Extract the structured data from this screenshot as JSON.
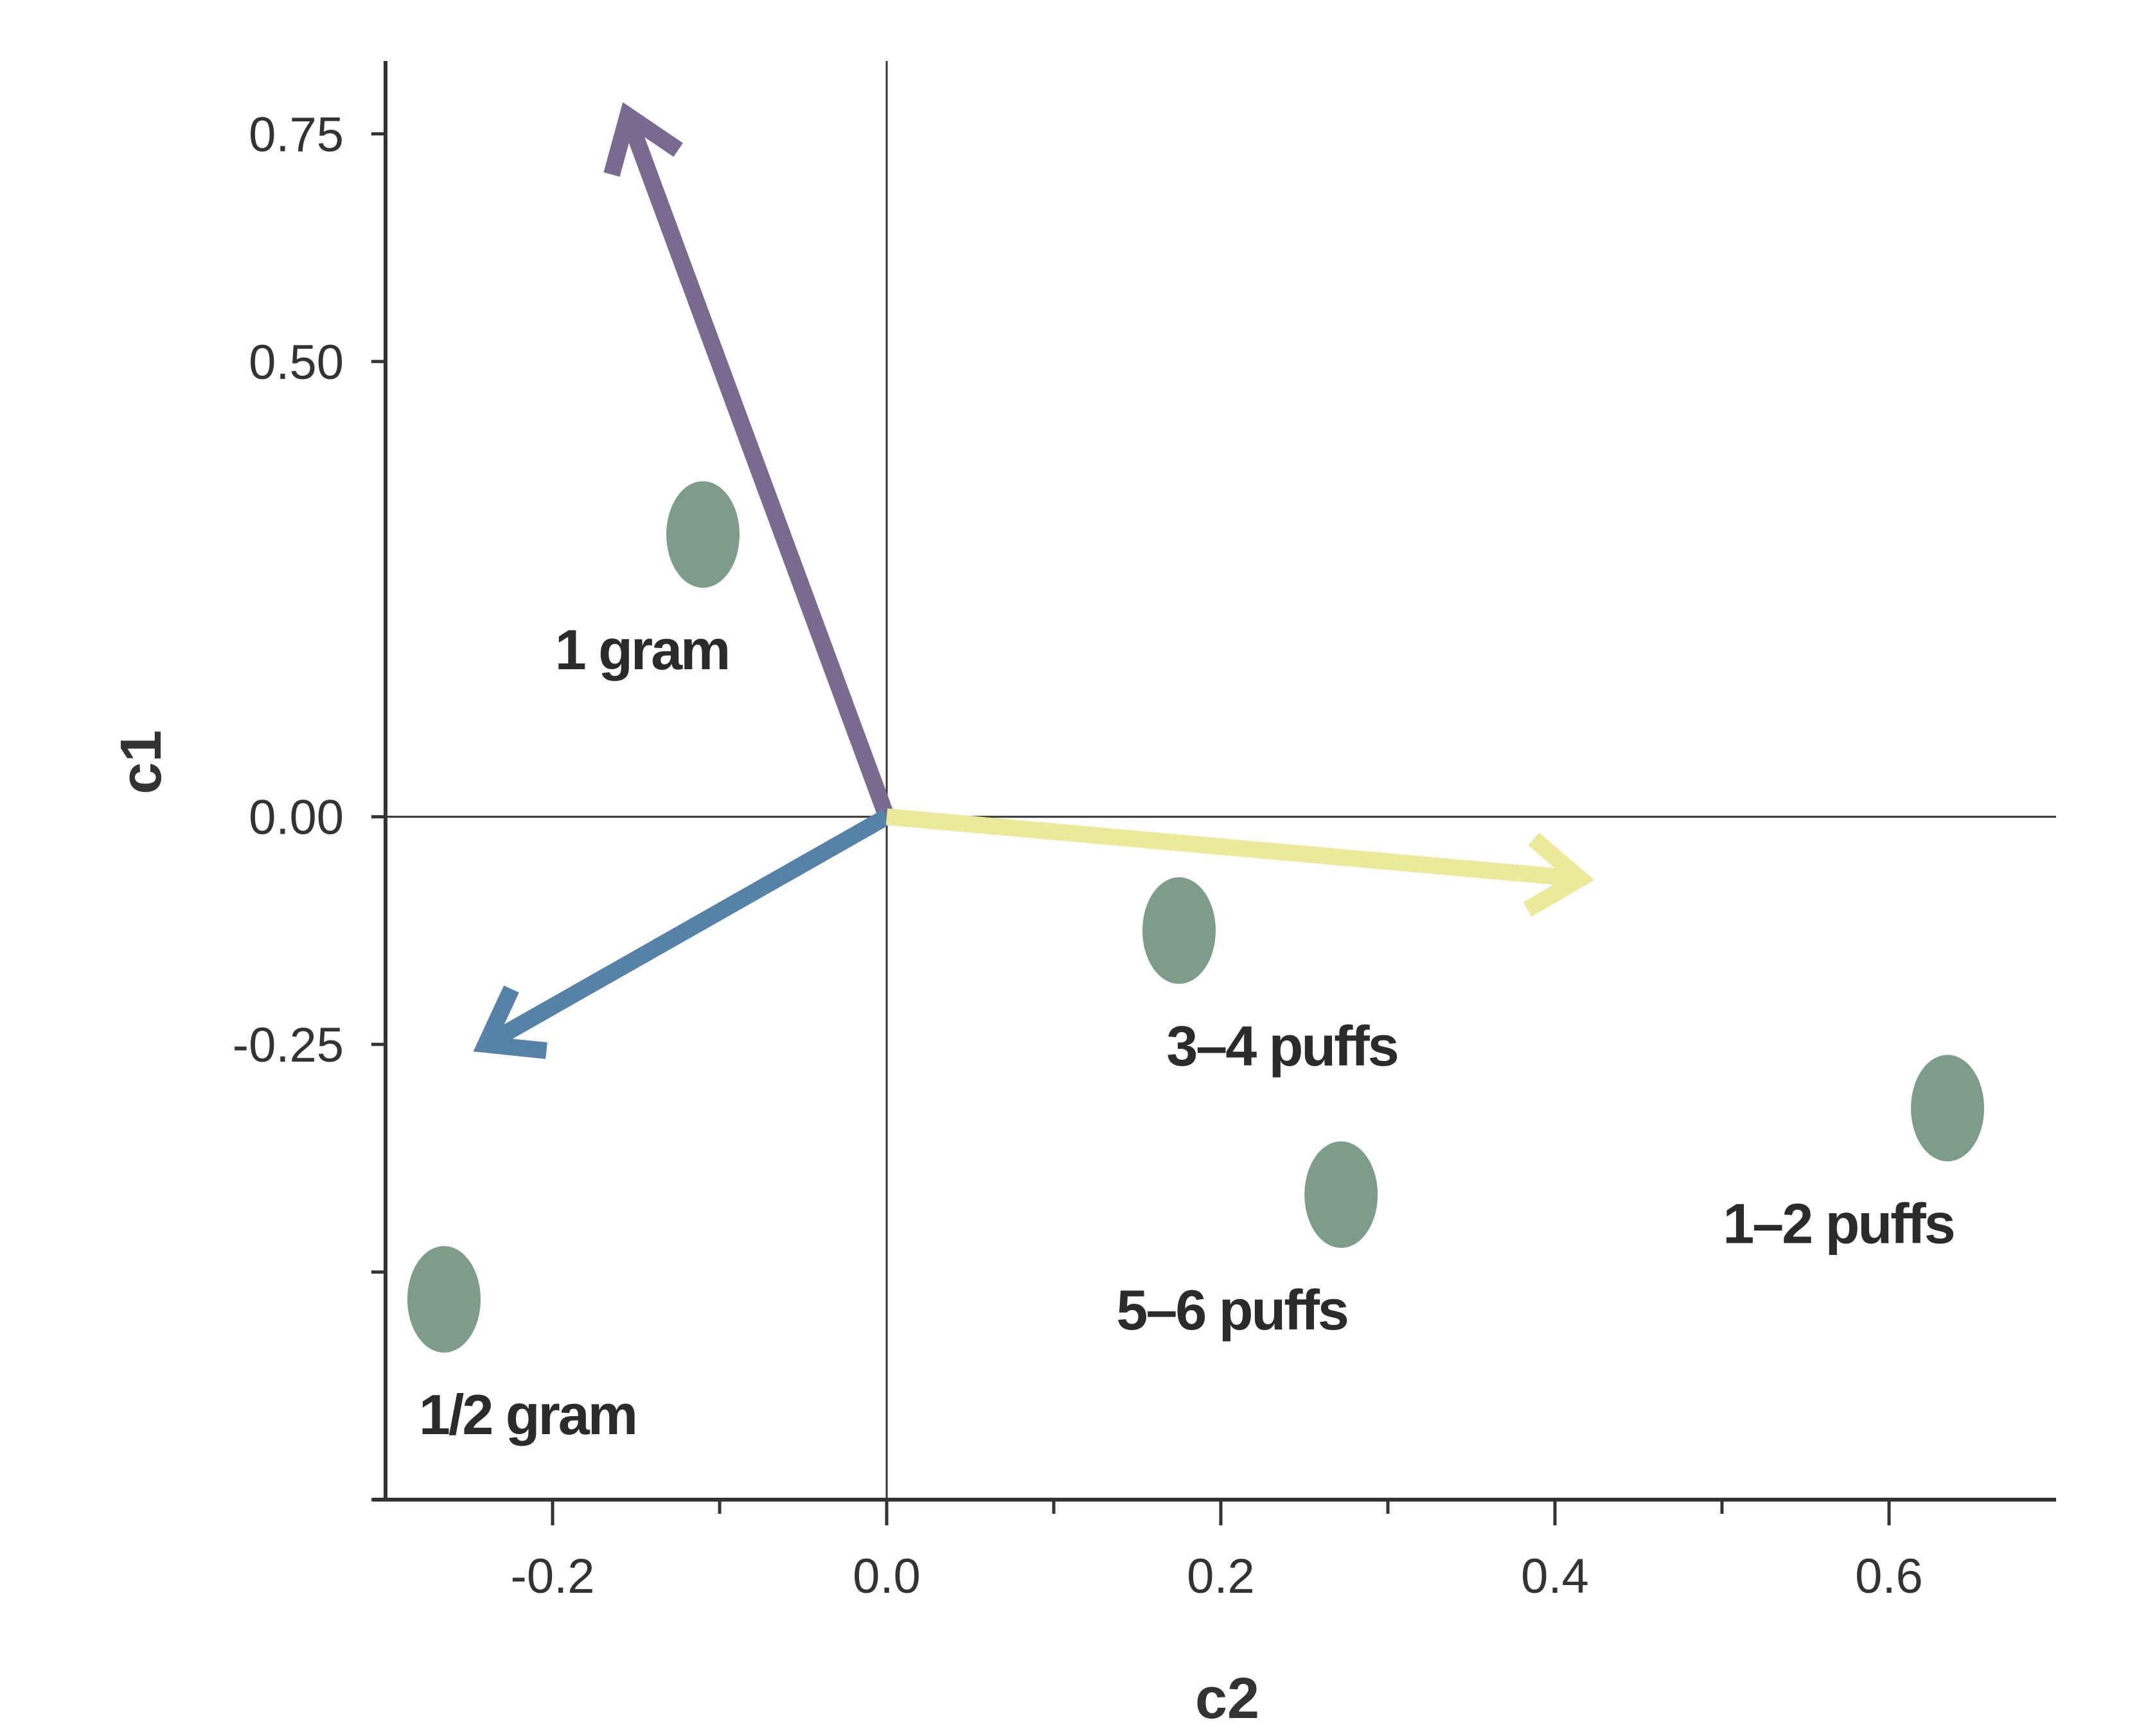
{
  "chart_data": {
    "type": "scatter",
    "title": "",
    "xlabel": "c2",
    "ylabel": "c1",
    "xlim": [
      -0.3,
      0.7
    ],
    "ylim": [
      -0.75,
      0.83
    ],
    "x_major_ticks": [
      -0.2,
      0.0,
      0.2,
      0.4,
      0.6
    ],
    "x_tick_labels": [
      "-0.2",
      "0.0",
      "0.2",
      "0.4",
      "0.6"
    ],
    "x_minor_ticks": [
      -0.1,
      0.1,
      0.3,
      0.5
    ],
    "y_ticks": [
      0.75,
      0.5,
      0.0,
      -0.25,
      -0.5,
      -0.75
    ],
    "y_tick_labels": [
      "0.75",
      "0.50",
      "0.00",
      "-0.25",
      "",
      ""
    ],
    "grid": false,
    "reference_lines": {
      "x": 0.0,
      "y": 0.0
    },
    "points": [
      {
        "label": "1 gram",
        "x": -0.11,
        "y": 0.31,
        "color": "#7d9d8a"
      },
      {
        "label": "1/2 gram",
        "x": -0.265,
        "y": -0.53,
        "color": "#7d9d8a"
      },
      {
        "label": "3–4 puffs",
        "x": 0.175,
        "y": -0.125,
        "color": "#7d9d8a"
      },
      {
        "label": "5–6 puffs",
        "x": 0.272,
        "y": -0.415,
        "color": "#7d9d8a"
      },
      {
        "label": "1–2 puffs",
        "x": 0.635,
        "y": -0.32,
        "color": "#7d9d8a"
      }
    ],
    "vectors": [
      {
        "x": -0.155,
        "y": 0.77,
        "color": "#7b6a90"
      },
      {
        "x": -0.24,
        "y": -0.25,
        "color": "#5782a8"
      },
      {
        "x": 0.415,
        "y": -0.068,
        "color": "#ede99a"
      }
    ]
  }
}
